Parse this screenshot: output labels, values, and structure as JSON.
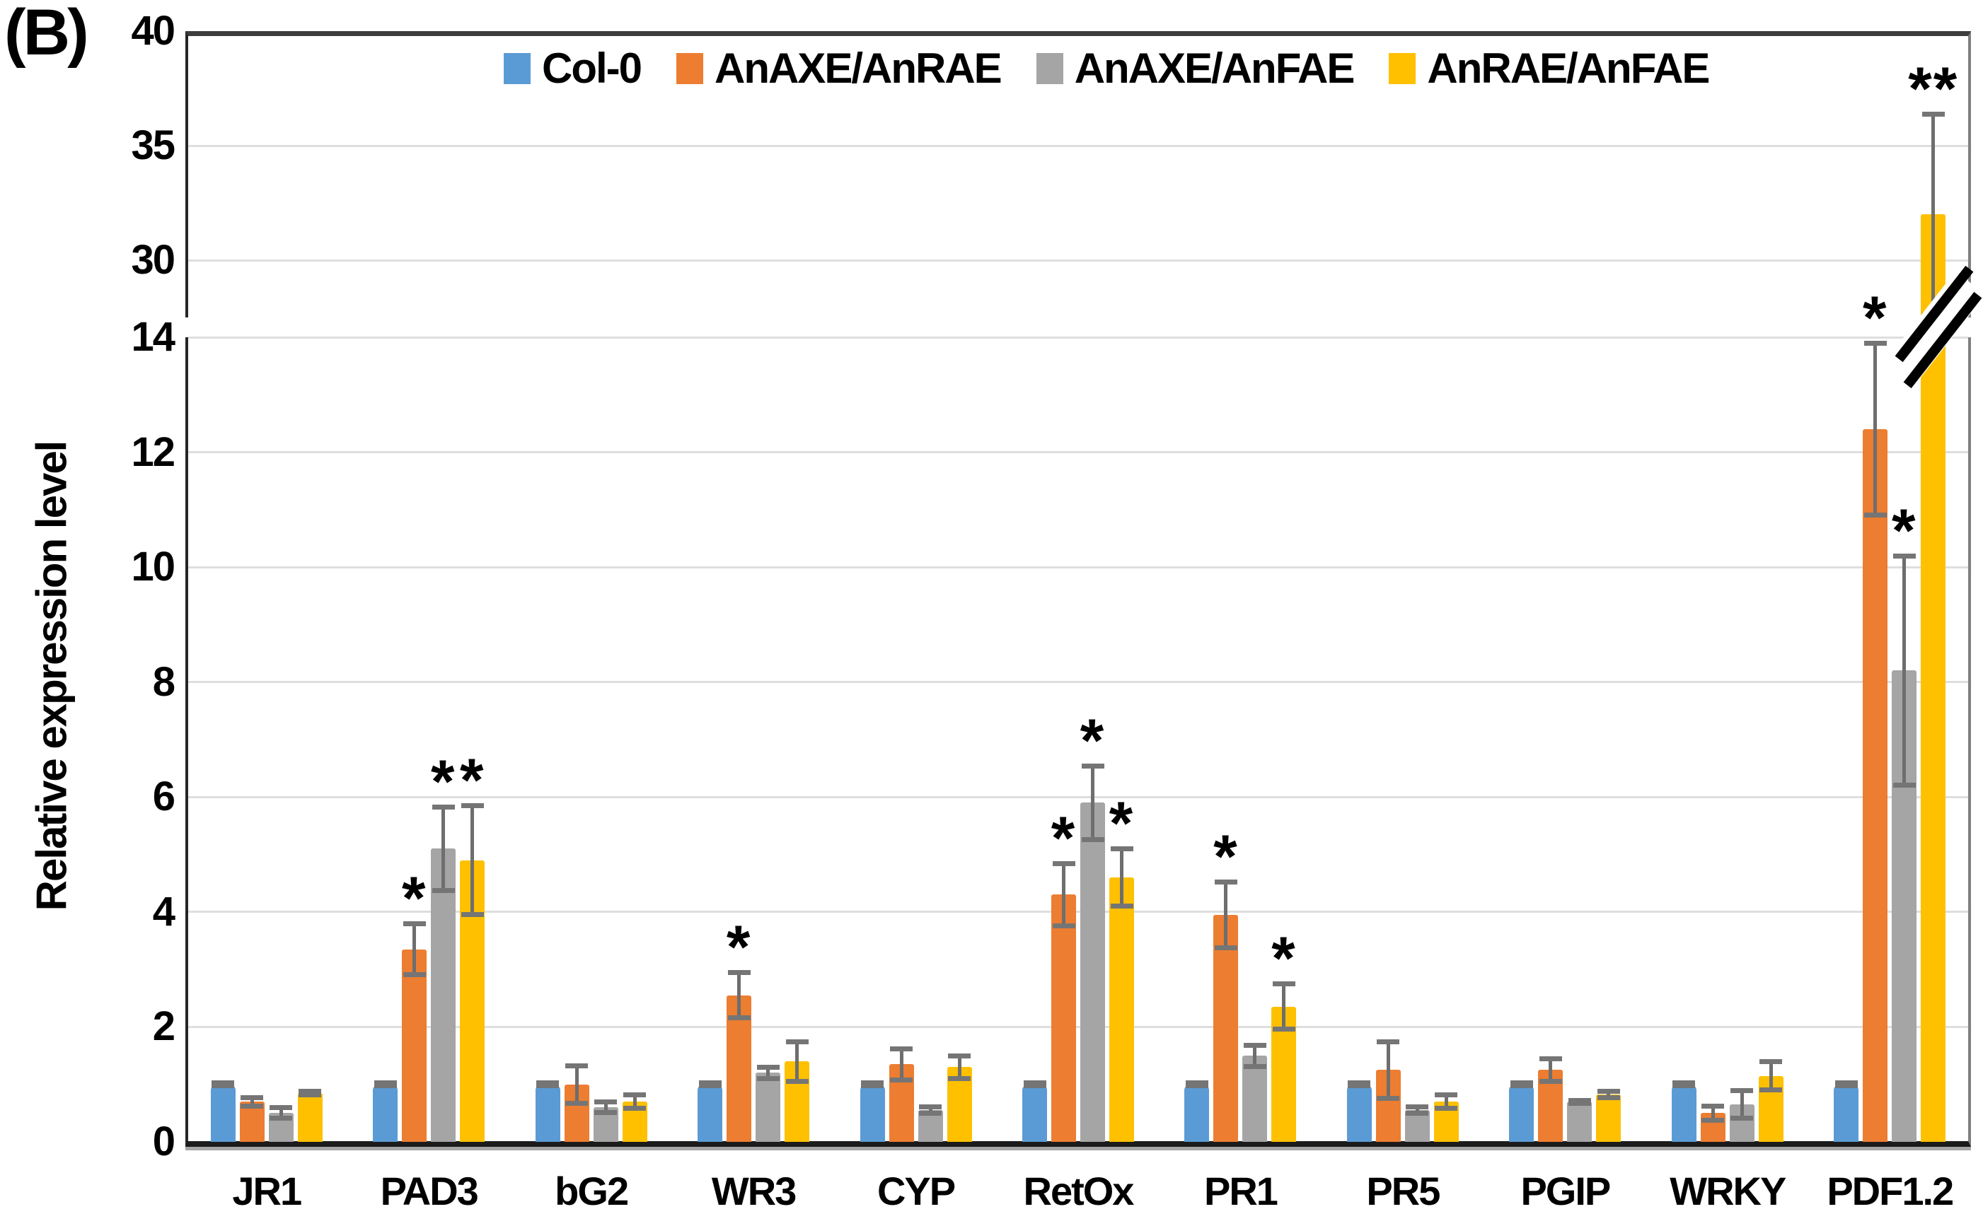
{
  "figure": {
    "panel_label": "(B)"
  },
  "y_axis": {
    "title": "Relative expression level"
  },
  "legend": {
    "items": [
      {
        "label": "Col-0",
        "color": "#5B9BD5"
      },
      {
        "label": "AnAXE/AnRAE",
        "color": "#ED7D31"
      },
      {
        "label": "AnAXE/AnFAE",
        "color": "#A5A5A5"
      },
      {
        "label": "AnRAE/AnFAE",
        "color": "#FFC000"
      }
    ]
  },
  "chart_data": {
    "type": "bar",
    "title": "",
    "xlabel": "",
    "ylabel": "Relative expression level",
    "categories": [
      "JR1",
      "PAD3",
      "bG2",
      "WR3",
      "CYP",
      "RetOx",
      "PR1",
      "PR5",
      "PGIP",
      "WRKY",
      "PDF1.2"
    ],
    "axis_break": {
      "lower_ylim": [
        0,
        14
      ],
      "lower_ticks": [
        0,
        2,
        4,
        6,
        8,
        10,
        12,
        14
      ],
      "upper_ylim": [
        27.5,
        40
      ],
      "upper_ticks": [
        30,
        35,
        40
      ],
      "upper_gridlines": [
        30,
        35
      ],
      "break_on_series": "AnRAE/AnFAE",
      "break_on_category": "PDF1.2"
    },
    "grid": "horizontal",
    "legend_position": "top-inside",
    "series": [
      {
        "name": "Col-0",
        "color": "#5B9BD5",
        "values": [
          1.0,
          1.0,
          1.0,
          1.0,
          1.0,
          1.0,
          1.0,
          1.0,
          1.0,
          1.0,
          1.0
        ],
        "errors": [
          0.03,
          0.03,
          0.03,
          0.03,
          0.03,
          0.03,
          0.03,
          0.03,
          0.03,
          0.03,
          0.03
        ],
        "sig": [
          "",
          "",
          "",
          "",
          "",
          "",
          "",
          "",
          "",
          "",
          ""
        ]
      },
      {
        "name": "AnAXE/AnRAE",
        "color": "#ED7D31",
        "values": [
          0.7,
          3.35,
          1.0,
          2.55,
          1.35,
          4.3,
          3.95,
          1.25,
          1.25,
          0.5,
          12.4
        ],
        "errors": [
          0.08,
          0.45,
          0.33,
          0.4,
          0.28,
          0.55,
          0.58,
          0.5,
          0.2,
          0.13,
          1.5
        ],
        "sig": [
          "",
          "*",
          "",
          "*",
          "",
          "*",
          "*",
          "",
          "",
          "",
          "*"
        ]
      },
      {
        "name": "AnAXE/AnFAE",
        "color": "#A5A5A5",
        "values": [
          0.5,
          5.1,
          0.6,
          1.2,
          0.55,
          5.9,
          1.5,
          0.55,
          0.7,
          0.65,
          8.2
        ],
        "errors": [
          0.1,
          0.73,
          0.1,
          0.1,
          0.06,
          0.65,
          0.19,
          0.06,
          0.03,
          0.25,
          2.0
        ],
        "sig": [
          "",
          "*",
          "",
          "",
          "",
          "*",
          "",
          "",
          "",
          "",
          "*"
        ]
      },
      {
        "name": "AnRAE/AnFAE",
        "color": "#FFC000",
        "values": [
          0.85,
          4.9,
          0.7,
          1.4,
          1.3,
          4.6,
          2.35,
          0.7,
          0.82,
          1.15,
          32.0
        ],
        "errors": [
          0.04,
          0.95,
          0.12,
          0.35,
          0.2,
          0.5,
          0.4,
          0.12,
          0.06,
          0.25,
          4.4
        ],
        "sig": [
          "",
          "*",
          "",
          "",
          "",
          "*",
          "*",
          "",
          "",
          "",
          "**"
        ]
      }
    ]
  }
}
